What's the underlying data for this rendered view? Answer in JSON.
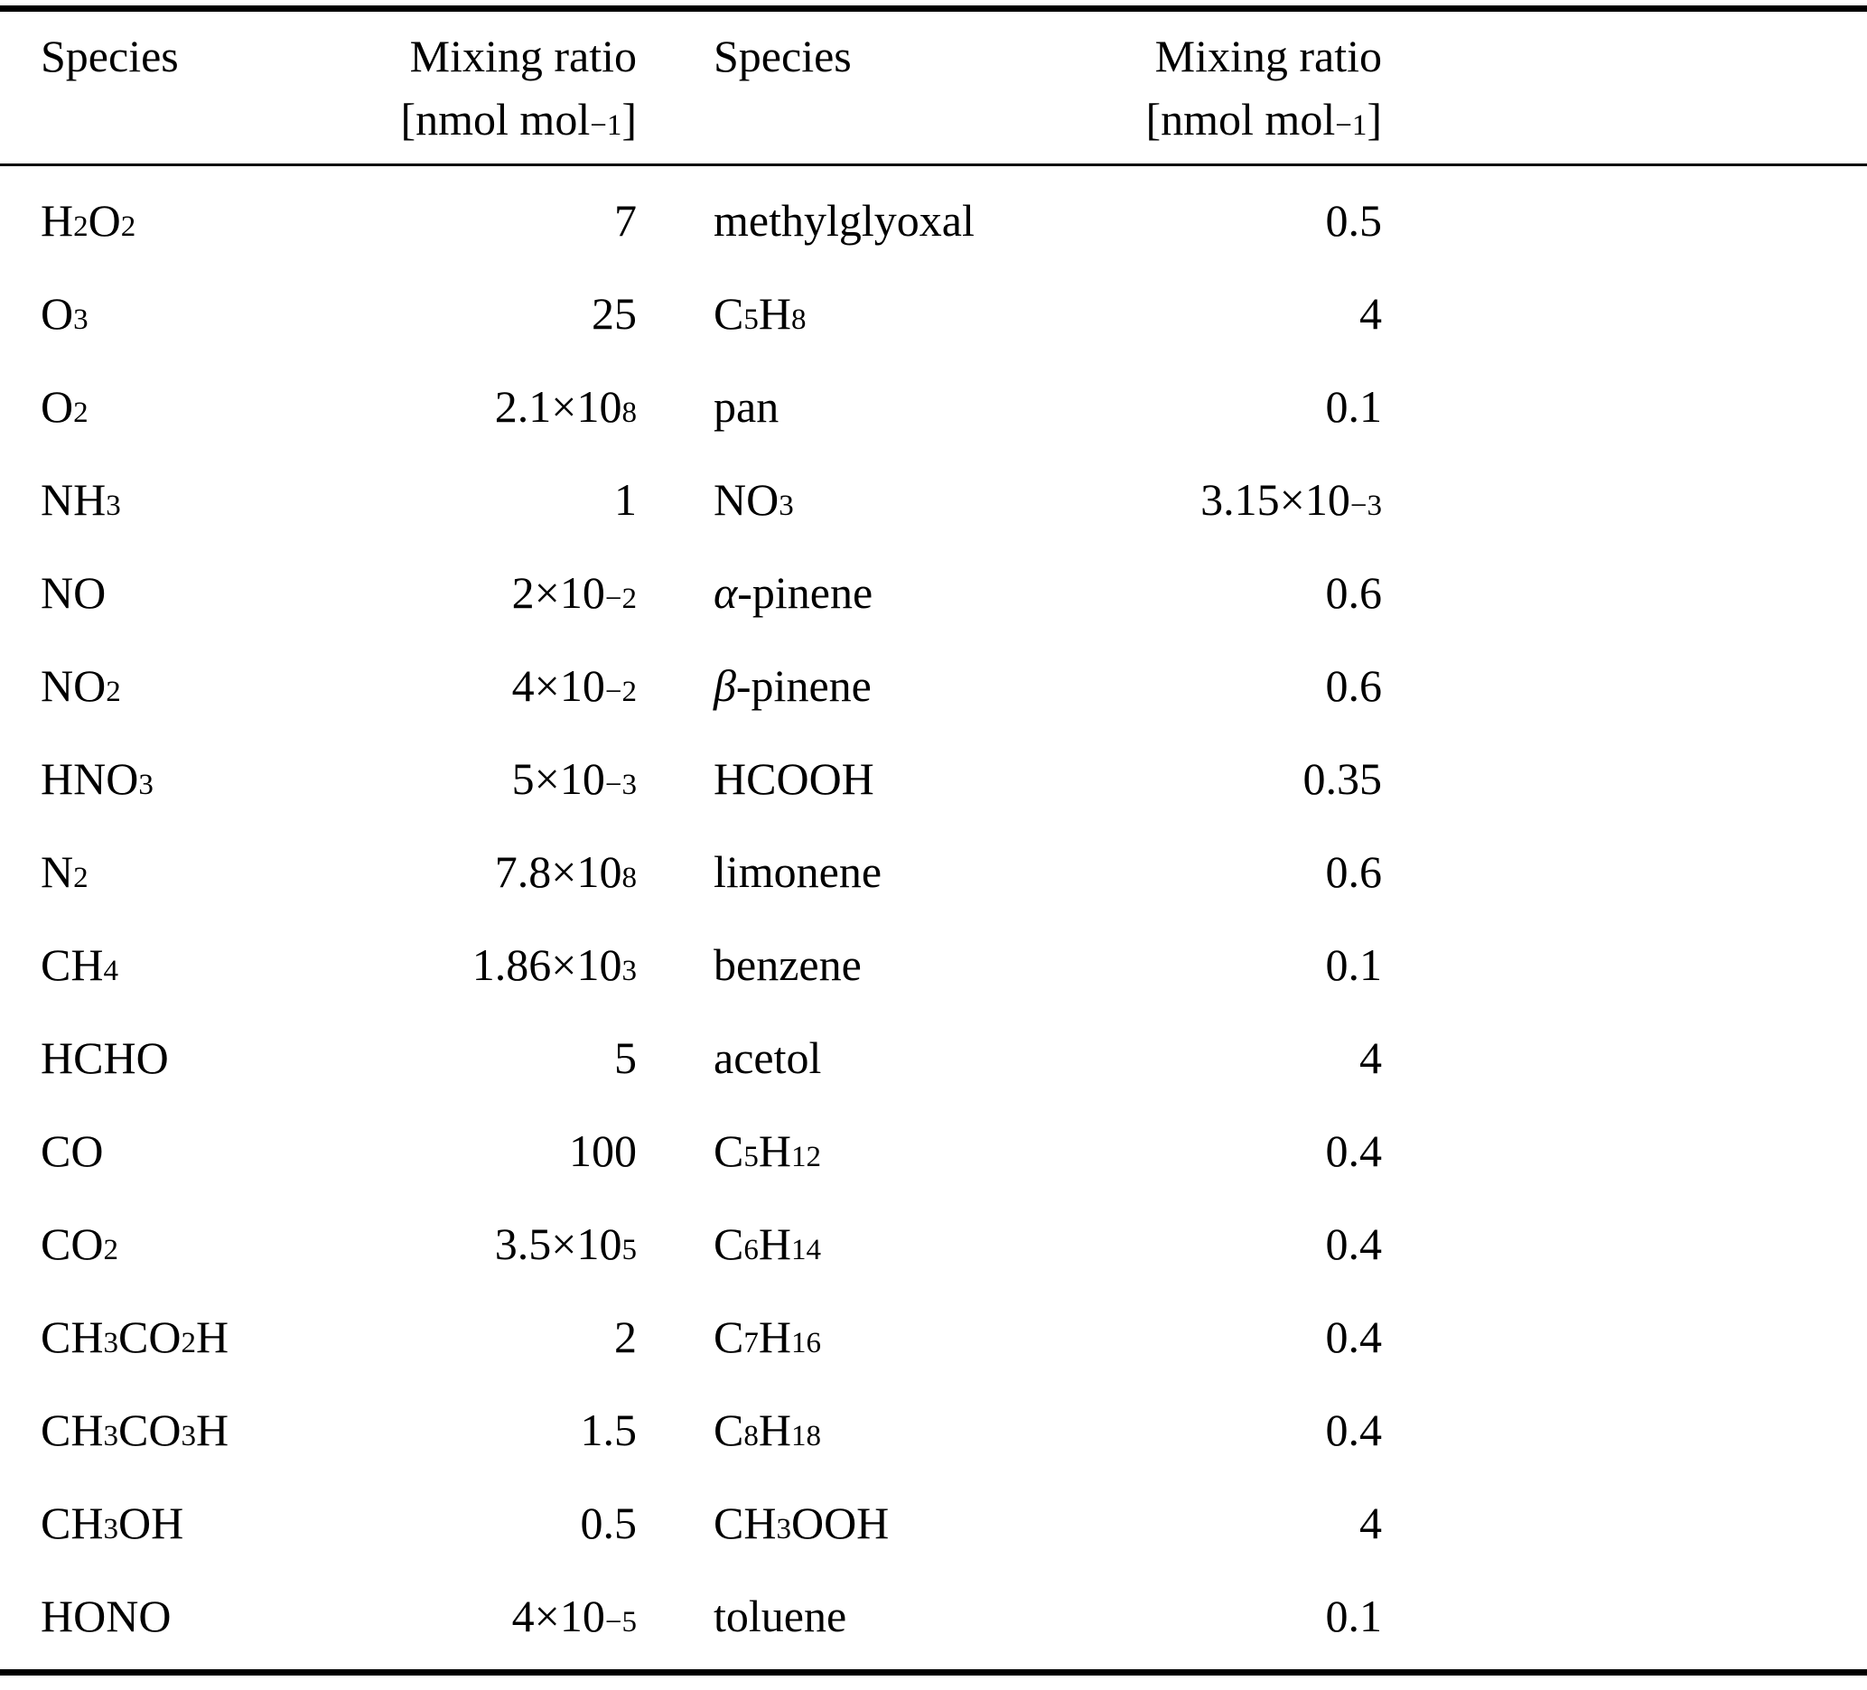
{
  "page": {
    "background_color": "#ffffff",
    "text_color": "#000000",
    "rule_color": "#000000"
  },
  "table": {
    "col_headers": {
      "species_left": "Species",
      "ratio_left": "Mixing ratio",
      "unit_left": "[nmol mol^−1^]",
      "species_right": "Species",
      "ratio_right": "Mixing ratio",
      "unit_right": "[nmol mol^−1^]"
    },
    "rows": [
      {
        "l_species": "H~2~O~2~",
        "l_value": "7",
        "r_species": "methylglyoxal",
        "r_value": "0.5"
      },
      {
        "l_species": "O~3~",
        "l_value": "25",
        "r_species": "C~5~H~8~",
        "r_value": "4"
      },
      {
        "l_species": "O~2~",
        "l_value": "2.1×10^8^",
        "r_species": "pan",
        "r_value": "0.1"
      },
      {
        "l_species": "NH~3~",
        "l_value": "1",
        "r_species": "NO~3~",
        "r_value": "3.15×10^−3^"
      },
      {
        "l_species": "NO",
        "l_value": "2×10^−2^",
        "r_species": "α-pinene",
        "r_value": "0.6"
      },
      {
        "l_species": "NO~2~",
        "l_value": "4×10^−2^",
        "r_species": "β-pinene",
        "r_value": "0.6"
      },
      {
        "l_species": "HNO~3~",
        "l_value": "5×10^−3^",
        "r_species": "HCOOH",
        "r_value": "0.35"
      },
      {
        "l_species": "N~2~",
        "l_value": "7.8×10^8^",
        "r_species": "limonene",
        "r_value": "0.6"
      },
      {
        "l_species": "CH~4~",
        "l_value": "1.86×10^3^",
        "r_species": "benzene",
        "r_value": "0.1"
      },
      {
        "l_species": "HCHO",
        "l_value": "5",
        "r_species": "acetol",
        "r_value": "4"
      },
      {
        "l_species": "CO",
        "l_value": "100",
        "r_species": "C~5~H~12~",
        "r_value": "0.4"
      },
      {
        "l_species": "CO~2~",
        "l_value": "3.5×10^5^",
        "r_species": "C~6~H~14~",
        "r_value": "0.4"
      },
      {
        "l_species": "CH~3~CO~2~H",
        "l_value": "2",
        "r_species": "C~7~H~16~",
        "r_value": "0.4"
      },
      {
        "l_species": "CH~3~CO~3~H",
        "l_value": "1.5",
        "r_species": "C~8~H~18~",
        "r_value": "0.4"
      },
      {
        "l_species": "CH~3~OH",
        "l_value": "0.5",
        "r_species": "CH~3~OOH",
        "r_value": "4"
      },
      {
        "l_species": "HONO",
        "l_value": "4×10^−5^",
        "r_species": "toluene",
        "r_value": "0.1"
      }
    ]
  }
}
